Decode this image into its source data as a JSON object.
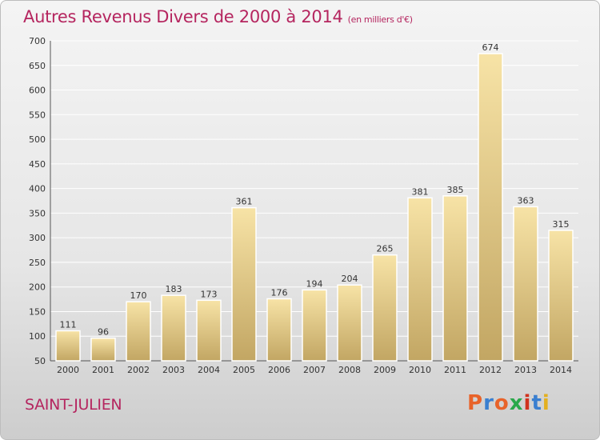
{
  "header": {
    "title": "Autres Revenus Divers de 2000 à 2014",
    "subtitle": "(en milliers d'€)"
  },
  "footer": {
    "commune": "SAINT-JULIEN",
    "logo": "Proxiti"
  },
  "colors": {
    "title": "#b5255f",
    "bar_light": "#f5dea0",
    "bar_dark": "#c4a865",
    "grid": "#ffffff"
  },
  "chart_data": {
    "type": "bar",
    "title": "Autres Revenus Divers de 2000 à 2014",
    "subtitle": "(en milliers d'€)",
    "categories": [
      "2000",
      "2001",
      "2002",
      "2003",
      "2004",
      "2005",
      "2006",
      "2007",
      "2008",
      "2009",
      "2010",
      "2011",
      "2012",
      "2013",
      "2014"
    ],
    "values": [
      111,
      96,
      170,
      183,
      173,
      361,
      176,
      194,
      204,
      265,
      381,
      385,
      674,
      363,
      315
    ],
    "ylim": [
      50,
      700
    ],
    "yticks": [
      50,
      100,
      150,
      200,
      250,
      300,
      350,
      400,
      450,
      500,
      550,
      600,
      650,
      700
    ],
    "grid": true,
    "data_labels": true
  }
}
